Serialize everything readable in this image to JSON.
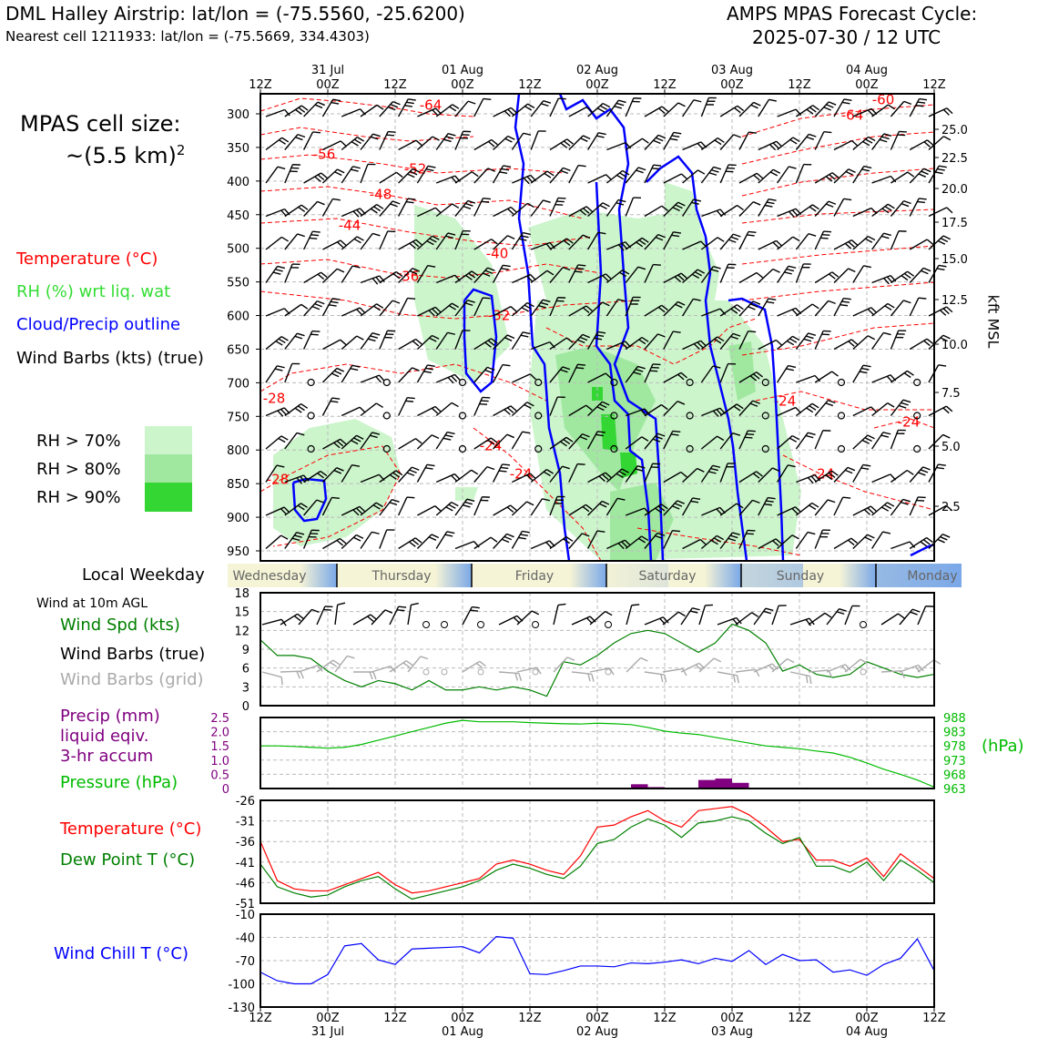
{
  "header": {
    "left_title": "DML Halley Airstrip: lat/lon = (-75.5560, -25.6200)",
    "left_sub": "Nearest cell 1211933: lat/lon = (-75.5669, 334.4303)",
    "right_title": "AMPS MPAS Forecast Cycle:",
    "right_sub": "2025-07-30 / 12 UTC"
  },
  "cell_size": {
    "label": "MPAS cell size:",
    "value": "~(5.5 km)",
    "exponent": "2"
  },
  "legend": {
    "temperature": "Temperature (°C)",
    "rh": "RH (%) wrt liq. wat",
    "cloud": "Cloud/Precip outline",
    "wind": "Wind Barbs (kts) (true)"
  },
  "rh_legend": [
    {
      "label": "RH > 70%",
      "color": "#ccf5cc"
    },
    {
      "label": "RH > 80%",
      "color": "#a0e8a0"
    },
    {
      "label": "RH > 90%",
      "color": "#33d633"
    }
  ],
  "colors": {
    "temperature": "#ff0000",
    "rh_label": "#33dd33",
    "cloud": "#0000ff",
    "wind_speed": "#008000",
    "wind_grid": "#aaaaaa",
    "precip": "#800080",
    "pressure": "#00bb00",
    "dewpoint": "#008000",
    "wind_chill": "#0000ff"
  },
  "time_axis": {
    "top_hours": [
      "12Z",
      "00Z",
      "12Z",
      "00Z",
      "12Z",
      "00Z",
      "12Z",
      "00Z",
      "12Z",
      "00Z",
      "12Z"
    ],
    "top_dates": [
      "31 Jul",
      "01 Aug",
      "02 Aug",
      "03 Aug",
      "04 Aug"
    ],
    "bottom_hours": [
      "12Z",
      "00Z",
      "12Z",
      "00Z",
      "12Z",
      "00Z",
      "12Z",
      "00Z",
      "12Z",
      "00Z",
      "12Z"
    ],
    "bottom_dates": [
      "31 Jul",
      "01 Aug",
      "02 Aug",
      "03 Aug",
      "04 Aug"
    ]
  },
  "weekday": {
    "label": "Local Weekday",
    "days": [
      "Wednesday",
      "Thursday",
      "Friday",
      "Saturday",
      "Sunday",
      "Monday"
    ]
  },
  "wind_panel": {
    "title": "Wind at 10m AGL",
    "speed_label": "Wind Spd (kts)",
    "barbs_true_label": "Wind Barbs (true)",
    "barbs_grid_label": "Wind Barbs (grid)"
  },
  "precip_panel": {
    "precip_label_1": "Precip (mm)",
    "precip_label_2": "liquid eqiv.",
    "precip_label_3": "3-hr accum",
    "pressure_label": "Pressure (hPa)",
    "right_unit": "(hPa)"
  },
  "temp_panel": {
    "temp_label": "Temperature (°C)",
    "dew_label": "Dew Point T (°C)"
  },
  "chill_panel": {
    "label": "Wind Chill T (°C)"
  },
  "chart_data": [
    {
      "type": "contour",
      "name": "time-height cross section",
      "x_ticks": [
        "12Z",
        "00Z",
        "12Z",
        "00Z",
        "12Z",
        "00Z",
        "12Z",
        "00Z",
        "12Z",
        "00Z",
        "12Z"
      ],
      "y_left_ticks": [
        "300",
        "350",
        "400",
        "450",
        "500",
        "550",
        "600",
        "650",
        "700",
        "750",
        "800",
        "850",
        "900",
        "950"
      ],
      "y_right_ticks": [
        "25.0",
        "22.5",
        "20.0",
        "17.5",
        "15.0",
        "12.5",
        "10.0",
        "7.5",
        "5.0",
        "2.5"
      ],
      "y_right_label": "kft MSL",
      "temperature_contour_labels": [
        "-64",
        "-60",
        "-64",
        "-56",
        "-52",
        "-48",
        "-44",
        "-40",
        "-36",
        "-32",
        "-28",
        "-24",
        "-24",
        "-24",
        "-24",
        "-28",
        "-24"
      ]
    },
    {
      "type": "line",
      "name": "wind at 10m AGL",
      "yticks": [
        "18",
        "15",
        "12",
        "9",
        "6",
        "3",
        "0"
      ],
      "ylim": [
        0,
        18
      ],
      "x": [
        0,
        3,
        6,
        9,
        12,
        15,
        18,
        21,
        24,
        27,
        30,
        33,
        36,
        39,
        42,
        45,
        48,
        51,
        54,
        57,
        60,
        63,
        66,
        69,
        72,
        75,
        78,
        81,
        84,
        87,
        90,
        93,
        96,
        99,
        102,
        105,
        108,
        111,
        114,
        117,
        120
      ],
      "series": [
        {
          "values": [
            10.5,
            8,
            8,
            7.5,
            5.5,
            4,
            3,
            4,
            3.5,
            2.5,
            4,
            2.5,
            2.5,
            3,
            2.5,
            3,
            2.5,
            1.5,
            7,
            6.5,
            8,
            10,
            11.5,
            12,
            11.5,
            10,
            8.5,
            10,
            13,
            12,
            10,
            5.5,
            6.5,
            5,
            4.5,
            5,
            7,
            6,
            5,
            4.5,
            5
          ]
        }
      ]
    },
    {
      "type": "bar+line",
      "name": "precip and pressure",
      "precip_yticks": [
        "2.5",
        "2.0",
        "1.5",
        "1.0",
        "0.5",
        "0"
      ],
      "pressure_yticks": [
        "988",
        "983",
        "978",
        "973",
        "968",
        "963"
      ],
      "precip_ylim": [
        0,
        2.5
      ],
      "pressure_ylim": [
        963,
        988
      ],
      "x": [
        0,
        3,
        6,
        9,
        12,
        15,
        18,
        21,
        24,
        27,
        30,
        33,
        36,
        39,
        42,
        45,
        48,
        51,
        54,
        57,
        60,
        63,
        66,
        69,
        72,
        75,
        78,
        81,
        84,
        87,
        90,
        93,
        96,
        99,
        102,
        105,
        108,
        111,
        114,
        117,
        120
      ],
      "series": [
        {
          "values": [
            978,
            978,
            977.8,
            977.5,
            977.2,
            977.5,
            978.5,
            980,
            981.5,
            983,
            984.5,
            986,
            987,
            986.5,
            986.5,
            986.5,
            986.2,
            986,
            985.8,
            985.7,
            986,
            985.8,
            985.5,
            984.5,
            983.2,
            982.5,
            982,
            981,
            980,
            979,
            978,
            977.5,
            977,
            976.2,
            975.5,
            974,
            972,
            969.8,
            968,
            966,
            963.5
          ]
        }
      ],
      "precip": [
        {
          "x": [
            66,
            69,
            78,
            81,
            84
          ],
          "values": [
            0.15,
            0.05,
            0.3,
            0.35,
            0.2
          ]
        }
      ]
    },
    {
      "type": "line",
      "name": "temperature and dew point",
      "yticks": [
        "-26",
        "-31",
        "-36",
        "-41",
        "-46",
        "-51"
      ],
      "ylim": [
        -51,
        -26
      ],
      "x": [
        0,
        3,
        6,
        9,
        12,
        15,
        18,
        21,
        24,
        27,
        30,
        33,
        36,
        39,
        42,
        45,
        48,
        51,
        54,
        57,
        60,
        63,
        66,
        69,
        72,
        75,
        78,
        81,
        84,
        87,
        90,
        93,
        96,
        99,
        102,
        105,
        108,
        111,
        114,
        117,
        120
      ],
      "series": [
        {
          "values": [
            -36,
            -45.5,
            -47.5,
            -48,
            -48,
            -46.5,
            -45,
            -43.5,
            -46.5,
            -48.5,
            -48,
            -47,
            -46,
            -45,
            -41.5,
            -40.5,
            -41.5,
            -43,
            -44,
            -39.5,
            -32.5,
            -32,
            -30,
            -28.5,
            -31,
            -32.5,
            -28.5,
            -28,
            -27.5,
            -29.5,
            -32.5,
            -36,
            -35.5,
            -40.5,
            -40.5,
            -42,
            -40,
            -44.5,
            -39,
            -42,
            -45
          ]
        },
        {
          "values": [
            -41.5,
            -47,
            -48.5,
            -49.5,
            -49,
            -47,
            -45.5,
            -44.5,
            -47.5,
            -50,
            -49,
            -48,
            -47,
            -45.5,
            -43,
            -41.5,
            -42.5,
            -44,
            -45,
            -42,
            -36.5,
            -35.5,
            -32.5,
            -30.5,
            -32,
            -35,
            -31.5,
            -31,
            -30,
            -31,
            -34,
            -36.5,
            -35,
            -42,
            -42,
            -43.5,
            -41,
            -45.5,
            -40.5,
            -43,
            -46
          ]
        }
      ]
    },
    {
      "type": "line",
      "name": "wind chill",
      "yticks": [
        "-10",
        "-40",
        "-70",
        "-100",
        "-130"
      ],
      "ylim": [
        -130,
        -10
      ],
      "x": [
        0,
        3,
        6,
        9,
        12,
        15,
        18,
        21,
        24,
        27,
        30,
        33,
        36,
        39,
        42,
        45,
        48,
        51,
        54,
        57,
        60,
        63,
        66,
        69,
        72,
        75,
        78,
        81,
        84,
        87,
        90,
        93,
        96,
        99,
        102,
        105,
        108,
        111,
        114,
        117,
        120
      ],
      "series": [
        {
          "values": [
            -85,
            -96,
            -100,
            -100,
            -88,
            -51,
            -48,
            -69,
            -75,
            -55,
            -54,
            -53,
            -52,
            -60,
            -39,
            -41,
            -87,
            -88,
            -83,
            -77,
            -77,
            -78,
            -73,
            -74,
            -72,
            -69,
            -74,
            -67,
            -71,
            -57,
            -75,
            -62,
            -70,
            -69,
            -85,
            -82,
            -89,
            -75,
            -67,
            -42,
            -83
          ]
        }
      ]
    }
  ]
}
